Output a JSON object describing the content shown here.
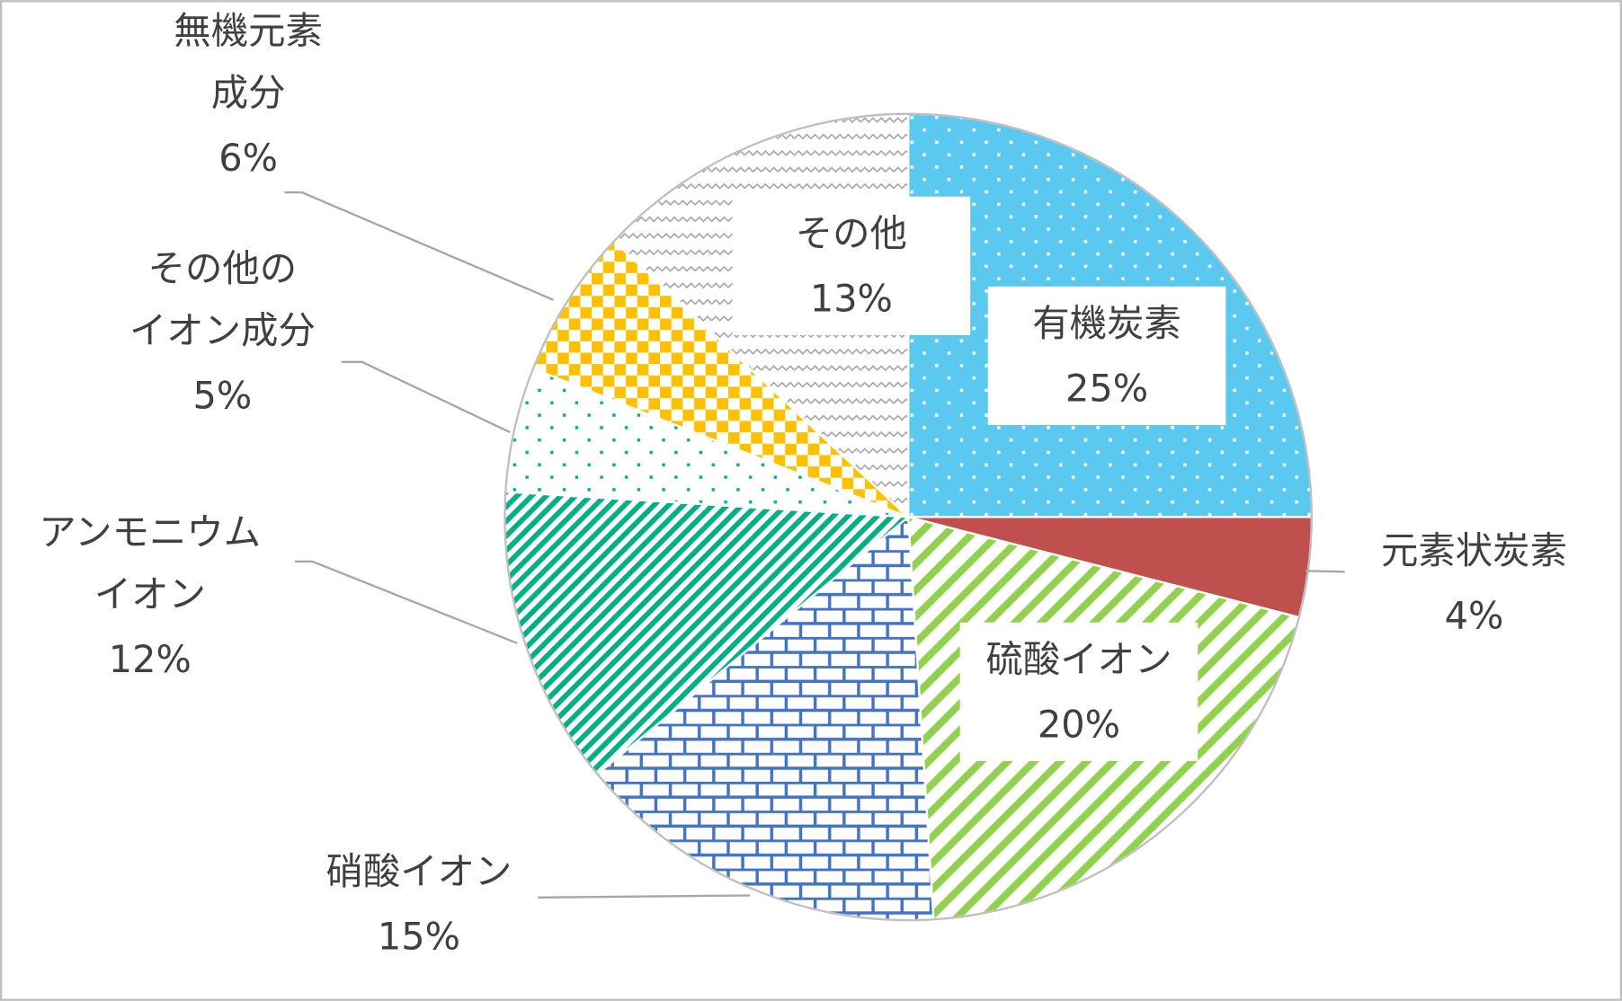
{
  "chart_data": {
    "type": "pie",
    "categories": [
      "有機炭素",
      "元素状炭素",
      "硫酸イオン",
      "硝酸イオン",
      "アンモニウム\nイオン",
      "その他の\nイオン成分",
      "無機元素\n成分",
      "その他"
    ],
    "values": [
      25,
      4,
      20,
      15,
      12,
      5,
      6,
      13
    ],
    "value_labels": [
      "25%",
      "4%",
      "20%",
      "15%",
      "12%",
      "5%",
      "6%",
      "13%"
    ],
    "colors": [
      "#5bc8f0",
      "#c0504d",
      "#92d050",
      "#4472c4",
      "#00b084",
      "#00b084",
      "#ffc000",
      "#a6a6a6"
    ]
  }
}
